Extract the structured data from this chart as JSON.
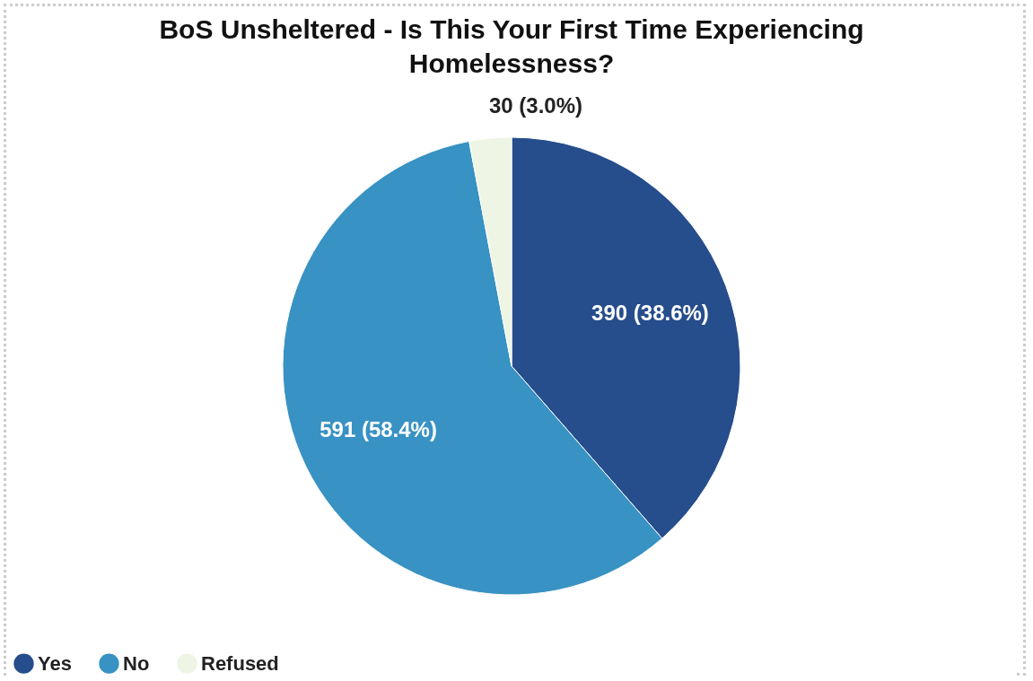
{
  "chart_data": {
    "type": "pie",
    "title": "BoS Unsheltered - Is This Your First Time Experiencing Homelessness?",
    "categories": [
      "Yes",
      "No",
      "Refused"
    ],
    "values": [
      390,
      591,
      30
    ],
    "colors": [
      "#264d8c",
      "#3892c3",
      "#eef5e4"
    ],
    "value_labels": [
      "390 (38.6%)",
      "591 (58.4%)",
      "30 (3.0%)"
    ],
    "legend": "bottom"
  }
}
